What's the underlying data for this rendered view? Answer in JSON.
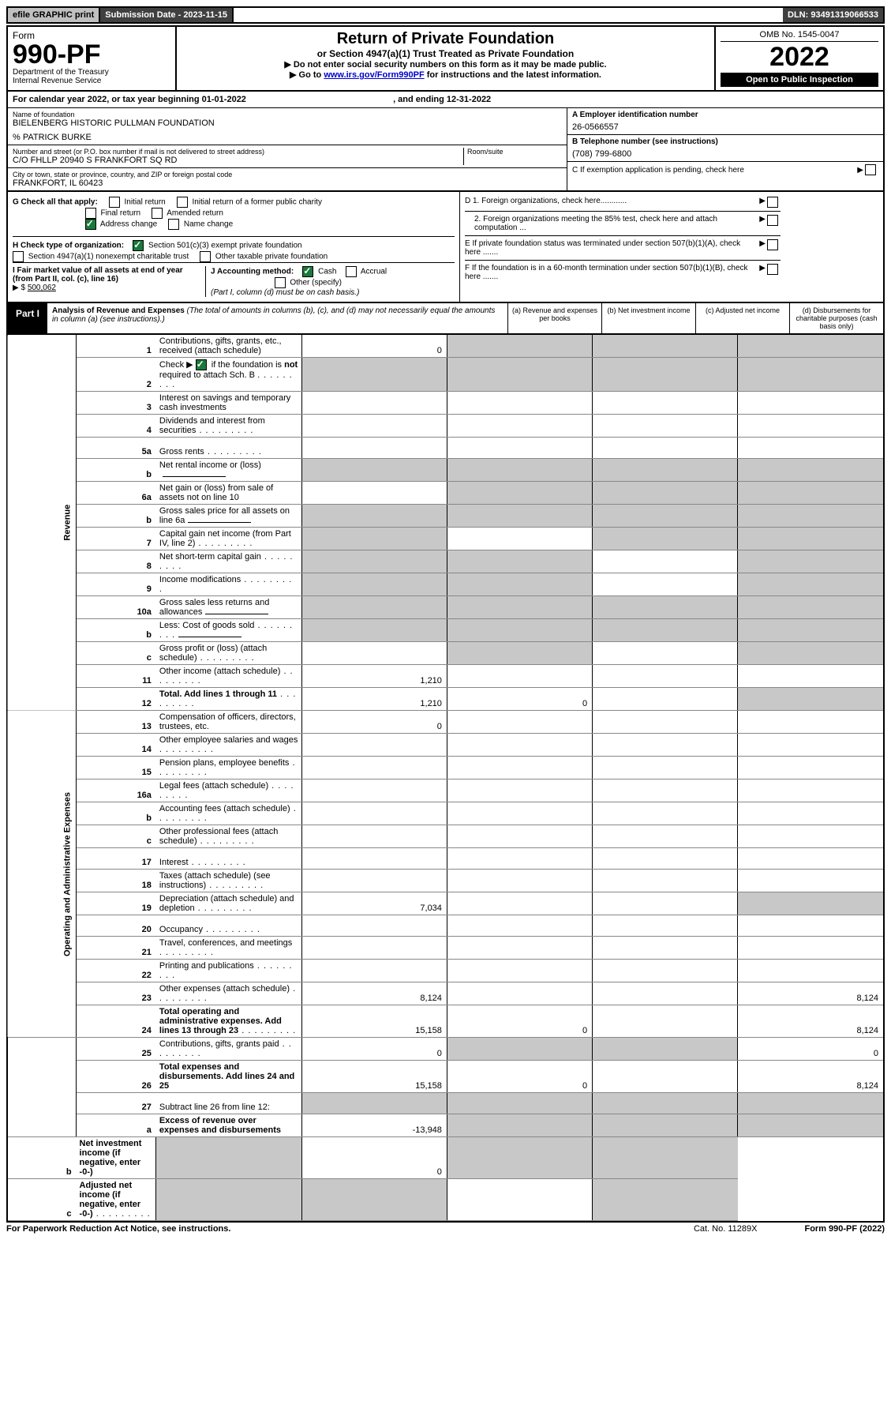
{
  "top": {
    "efile": "efile GRAPHIC print",
    "submission": "Submission Date - 2023-11-15",
    "dln": "DLN: 93491319066533"
  },
  "header": {
    "form_word": "Form",
    "form_no": "990-PF",
    "dept": "Department of the Treasury",
    "irs": "Internal Revenue Service",
    "title": "Return of Private Foundation",
    "subtitle": "or Section 4947(a)(1) Trust Treated as Private Foundation",
    "instr1": "▶ Do not enter social security numbers on this form as it may be made public.",
    "instr2_pre": "▶ Go to ",
    "instr2_link": "www.irs.gov/Form990PF",
    "instr2_post": " for instructions and the latest information.",
    "omb": "OMB No. 1545-0047",
    "year": "2022",
    "open": "Open to Public Inspection"
  },
  "caly": {
    "text_pre": "For calendar year 2022, or tax year beginning ",
    "begin": "01-01-2022",
    "mid": " , and ending ",
    "end": "12-31-2022"
  },
  "info": {
    "name_label": "Name of foundation",
    "name": "BIELENBERG HISTORIC PULLMAN FOUNDATION",
    "care_of": "% PATRICK BURKE",
    "addr_label": "Number and street (or P.O. box number if mail is not delivered to street address)",
    "addr": "C/O FHLLP 20940 S FRANKFORT SQ RD",
    "room_label": "Room/suite",
    "city_label": "City or town, state or province, country, and ZIP or foreign postal code",
    "city": "FRANKFORT, IL  60423",
    "a_label": "A Employer identification number",
    "a_val": "26-0566557",
    "b_label": "B Telephone number (see instructions)",
    "b_val": "(708) 799-6800",
    "c_label": "C If exemption application is pending, check here"
  },
  "checks": {
    "g_label": "G Check all that apply:",
    "g_initial": "Initial return",
    "g_initial_former": "Initial return of a former public charity",
    "g_final": "Final return",
    "g_amended": "Amended return",
    "g_address": "Address change",
    "g_name": "Name change",
    "h_label": "H Check type of organization:",
    "h_501c3": "Section 501(c)(3) exempt private foundation",
    "h_4947": "Section 4947(a)(1) nonexempt charitable trust",
    "h_other_tax": "Other taxable private foundation",
    "i_label": "I Fair market value of all assets at end of year (from Part II, col. (c), line 16)",
    "i_val": "500,062",
    "j_label": "J Accounting method:",
    "j_cash": "Cash",
    "j_accrual": "Accrual",
    "j_other": "Other (specify)",
    "j_note": "(Part I, column (d) must be on cash basis.)",
    "d1": "D 1. Foreign organizations, check here............",
    "d2": "2. Foreign organizations meeting the 85% test, check here and attach computation ...",
    "e": "E  If private foundation status was terminated under section 507(b)(1)(A), check here .......",
    "f": "F  If the foundation is in a 60-month termination under section 507(b)(1)(B), check here .......",
    "i_prefix": "▶ $"
  },
  "part1": {
    "label": "Part I",
    "title": "Analysis of Revenue and Expenses",
    "note": " (The total of amounts in columns (b), (c), and (d) may not necessarily equal the amounts in column (a) (see instructions).)",
    "col_a": "(a)   Revenue and expenses per books",
    "col_b": "(b)   Net investment income",
    "col_c": "(c)   Adjusted net income",
    "col_d": "(d)   Disbursements for charitable purposes (cash basis only)"
  },
  "vlabels": {
    "revenue": "Revenue",
    "expenses": "Operating and Administrative Expenses"
  },
  "rows": [
    {
      "n": "1",
      "d": "Contributions, gifts, grants, etc., received (attach schedule)",
      "a": "0",
      "shade": [
        "b",
        "c",
        "d"
      ]
    },
    {
      "n": "2",
      "d": "Check ▶ ☑ if the foundation is not required to attach Sch. B",
      "dots": true,
      "shade": [
        "a",
        "b",
        "c",
        "d"
      ]
    },
    {
      "n": "3",
      "d": "Interest on savings and temporary cash investments"
    },
    {
      "n": "4",
      "d": "Dividends and interest from securities",
      "dots": true
    },
    {
      "n": "5a",
      "d": "Gross rents",
      "dots": true
    },
    {
      "n": "b",
      "d": "Net rental income or (loss)",
      "shade": [
        "a",
        "b",
        "c",
        "d"
      ],
      "inline_blank": true
    },
    {
      "n": "6a",
      "d": "Net gain or (loss) from sale of assets not on line 10",
      "shade": [
        "b",
        "c",
        "d"
      ]
    },
    {
      "n": "b",
      "d": "Gross sales price for all assets on line 6a",
      "shade": [
        "a",
        "b",
        "c",
        "d"
      ],
      "inline_blank": true
    },
    {
      "n": "7",
      "d": "Capital gain net income (from Part IV, line 2)",
      "dots": true,
      "shade": [
        "a",
        "c",
        "d"
      ]
    },
    {
      "n": "8",
      "d": "Net short-term capital gain",
      "dots": true,
      "shade": [
        "a",
        "b",
        "d"
      ]
    },
    {
      "n": "9",
      "d": "Income modifications",
      "dots": true,
      "shade": [
        "a",
        "b",
        "d"
      ]
    },
    {
      "n": "10a",
      "d": "Gross sales less returns and allowances",
      "shade": [
        "a",
        "b",
        "c",
        "d"
      ],
      "inline_blank": true
    },
    {
      "n": "b",
      "d": "Less: Cost of goods sold",
      "dots": true,
      "shade": [
        "a",
        "b",
        "c",
        "d"
      ],
      "inline_blank": true
    },
    {
      "n": "c",
      "d": "Gross profit or (loss) (attach schedule)",
      "dots": true,
      "shade": [
        "b",
        "d"
      ]
    },
    {
      "n": "11",
      "d": "Other income (attach schedule)",
      "dots": true,
      "a": "1,210"
    },
    {
      "n": "12",
      "d": "Total. Add lines 1 through 11",
      "dots": true,
      "bold": true,
      "a": "1,210",
      "b": "0",
      "shade": [
        "d"
      ]
    },
    {
      "n": "13",
      "d": "Compensation of officers, directors, trustees, etc.",
      "a": "0"
    },
    {
      "n": "14",
      "d": "Other employee salaries and wages",
      "dots": true
    },
    {
      "n": "15",
      "d": "Pension plans, employee benefits",
      "dots": true
    },
    {
      "n": "16a",
      "d": "Legal fees (attach schedule)",
      "dots": true
    },
    {
      "n": "b",
      "d": "Accounting fees (attach schedule)",
      "dots": true
    },
    {
      "n": "c",
      "d": "Other professional fees (attach schedule)",
      "dots": true
    },
    {
      "n": "17",
      "d": "Interest",
      "dots": true
    },
    {
      "n": "18",
      "d": "Taxes (attach schedule) (see instructions)",
      "dots": true
    },
    {
      "n": "19",
      "d": "Depreciation (attach schedule) and depletion",
      "dots": true,
      "a": "7,034",
      "shade": [
        "d"
      ]
    },
    {
      "n": "20",
      "d": "Occupancy",
      "dots": true
    },
    {
      "n": "21",
      "d": "Travel, conferences, and meetings",
      "dots": true
    },
    {
      "n": "22",
      "d": "Printing and publications",
      "dots": true
    },
    {
      "n": "23",
      "d": "Other expenses (attach schedule)",
      "dots": true,
      "a": "8,124",
      "dval": "8,124"
    },
    {
      "n": "24",
      "d": "Total operating and administrative expenses. Add lines 13 through 23",
      "dots": true,
      "bold": true,
      "a": "15,158",
      "b": "0",
      "dval": "8,124"
    },
    {
      "n": "25",
      "d": "Contributions, gifts, grants paid",
      "dots": true,
      "a": "0",
      "shade": [
        "b",
        "c"
      ],
      "dval": "0"
    },
    {
      "n": "26",
      "d": "Total expenses and disbursements. Add lines 24 and 25",
      "bold": true,
      "a": "15,158",
      "b": "0",
      "dval": "8,124"
    },
    {
      "n": "27",
      "d": "Subtract line 26 from line 12:",
      "shade": [
        "a",
        "b",
        "c",
        "d"
      ]
    },
    {
      "n": "a",
      "d": "Excess of revenue over expenses and disbursements",
      "bold": true,
      "a": "-13,948",
      "shade": [
        "b",
        "c",
        "d"
      ]
    },
    {
      "n": "b",
      "d": "Net investment income (if negative, enter -0-)",
      "bold": true,
      "shade": [
        "a",
        "c",
        "d"
      ],
      "b": "0"
    },
    {
      "n": "c",
      "d": "Adjusted net income (if negative, enter -0-)",
      "dots": true,
      "bold": true,
      "shade": [
        "a",
        "b",
        "d"
      ]
    }
  ],
  "footer": {
    "left": "For Paperwork Reduction Act Notice, see instructions.",
    "cat": "Cat. No. 11289X",
    "form": "Form 990-PF (2022)"
  },
  "colors": {
    "shade": "#c8c8c8",
    "check_green": "#1a7a3a",
    "link": "#0000cc"
  }
}
